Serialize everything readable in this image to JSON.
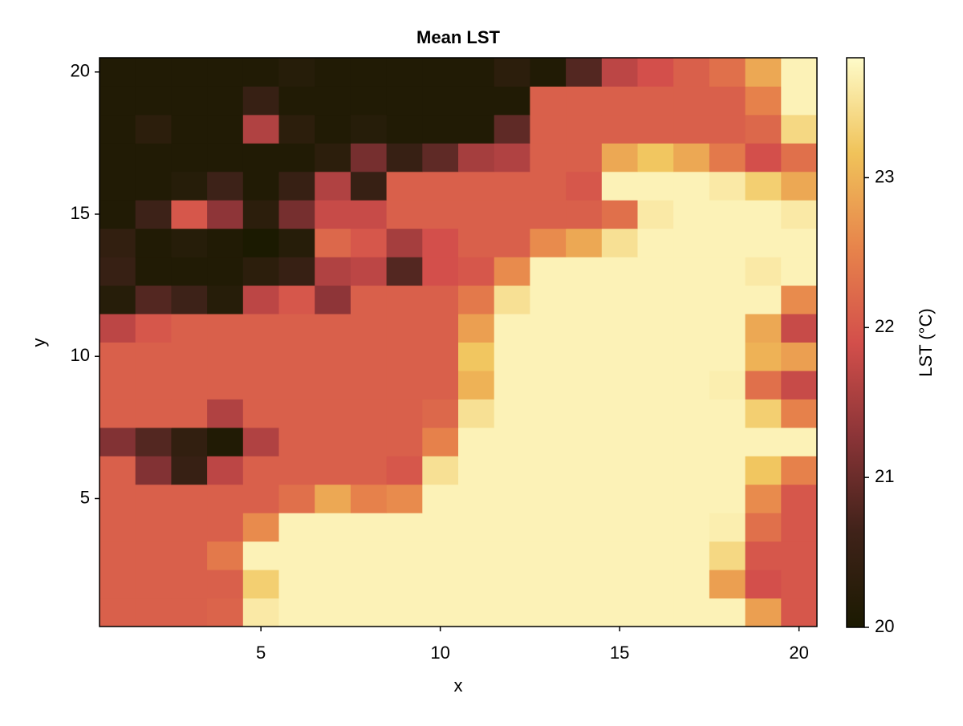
{
  "chart_data": {
    "type": "heatmap",
    "title": "Mean LST",
    "x_label": "x",
    "y_label": "y",
    "colorbar_label": "LST (°C)",
    "x": [
      1,
      2,
      3,
      4,
      5,
      6,
      7,
      8,
      9,
      10,
      11,
      12,
      13,
      14,
      15,
      16,
      17,
      18,
      19,
      20
    ],
    "y": [
      1,
      2,
      3,
      4,
      5,
      6,
      7,
      8,
      9,
      10,
      11,
      12,
      13,
      14,
      15,
      16,
      17,
      18,
      19,
      20
    ],
    "z": [
      [
        22.1,
        22.1,
        22.1,
        22.15,
        23.6,
        23.7,
        23.7,
        23.7,
        23.7,
        23.7,
        23.7,
        23.7,
        23.7,
        23.7,
        23.7,
        23.7,
        23.7,
        23.7,
        22.8,
        22.0
      ],
      [
        22.1,
        22.1,
        22.1,
        22.1,
        23.3,
        23.7,
        23.7,
        23.7,
        23.7,
        23.7,
        23.7,
        23.7,
        23.7,
        23.7,
        23.7,
        23.7,
        23.7,
        22.8,
        21.9,
        22.0
      ],
      [
        22.1,
        22.1,
        22.1,
        22.4,
        23.7,
        23.7,
        23.7,
        23.7,
        23.7,
        23.7,
        23.7,
        23.7,
        23.7,
        23.7,
        23.7,
        23.7,
        23.7,
        23.4,
        22.0,
        22.0
      ],
      [
        22.1,
        22.1,
        22.1,
        22.1,
        22.6,
        23.7,
        23.7,
        23.7,
        23.7,
        23.7,
        23.7,
        23.7,
        23.7,
        23.7,
        23.7,
        23.7,
        23.7,
        23.65,
        22.3,
        22.0
      ],
      [
        22.1,
        22.1,
        22.1,
        22.1,
        22.1,
        22.3,
        22.9,
        22.5,
        22.6,
        23.7,
        23.7,
        23.7,
        23.7,
        23.7,
        23.7,
        23.7,
        23.7,
        23.7,
        22.6,
        22.0
      ],
      [
        22.1,
        21.2,
        20.5,
        21.7,
        22.1,
        22.1,
        22.1,
        22.1,
        22.0,
        23.5,
        23.7,
        23.7,
        23.7,
        23.7,
        23.7,
        23.7,
        23.7,
        23.7,
        23.2,
        22.5
      ],
      [
        21.2,
        20.8,
        20.4,
        20.1,
        21.6,
        22.1,
        22.1,
        22.1,
        22.1,
        22.5,
        23.7,
        23.7,
        23.7,
        23.7,
        23.7,
        23.7,
        23.7,
        23.7,
        23.7,
        23.7
      ],
      [
        22.1,
        22.1,
        22.1,
        21.6,
        22.1,
        22.1,
        22.1,
        22.1,
        22.1,
        22.2,
        23.5,
        23.7,
        23.7,
        23.7,
        23.7,
        23.7,
        23.7,
        23.7,
        23.3,
        22.5
      ],
      [
        22.1,
        22.1,
        22.1,
        22.1,
        22.1,
        22.1,
        22.1,
        22.1,
        22.1,
        22.1,
        23.0,
        23.7,
        23.7,
        23.7,
        23.7,
        23.7,
        23.7,
        23.65,
        22.3,
        21.8
      ],
      [
        22.1,
        22.1,
        22.1,
        22.1,
        22.1,
        22.1,
        22.1,
        22.1,
        22.1,
        22.1,
        23.2,
        23.7,
        23.7,
        23.7,
        23.7,
        23.7,
        23.7,
        23.7,
        23.0,
        22.8
      ],
      [
        21.7,
        22.0,
        22.1,
        22.1,
        22.1,
        22.1,
        22.1,
        22.1,
        22.1,
        22.1,
        22.8,
        23.7,
        23.7,
        23.7,
        23.7,
        23.7,
        23.7,
        23.7,
        22.9,
        21.8
      ],
      [
        20.2,
        20.8,
        20.6,
        20.2,
        21.7,
        22.0,
        21.3,
        22.1,
        22.1,
        22.1,
        22.4,
        23.5,
        23.7,
        23.7,
        23.7,
        23.7,
        23.7,
        23.7,
        23.7,
        22.6
      ],
      [
        20.5,
        20.1,
        20.1,
        20.1,
        20.3,
        20.5,
        21.6,
        21.7,
        20.8,
        21.9,
        22.0,
        22.6,
        23.7,
        23.7,
        23.7,
        23.7,
        23.7,
        23.7,
        23.6,
        23.7
      ],
      [
        20.4,
        20.1,
        20.2,
        20.1,
        20.0,
        20.2,
        22.2,
        22.0,
        21.5,
        21.9,
        22.1,
        22.1,
        22.6,
        22.9,
        23.5,
        23.7,
        23.7,
        23.7,
        23.7,
        23.7
      ],
      [
        20.1,
        20.6,
        22.0,
        21.3,
        20.3,
        21.1,
        21.8,
        21.8,
        22.1,
        22.1,
        22.1,
        22.1,
        22.1,
        22.1,
        22.3,
        23.6,
        23.7,
        23.7,
        23.7,
        23.6
      ],
      [
        20.1,
        20.1,
        20.2,
        20.6,
        20.1,
        20.5,
        21.6,
        20.5,
        22.1,
        22.1,
        22.1,
        22.1,
        22.1,
        22.0,
        23.7,
        23.7,
        23.7,
        23.6,
        23.3,
        22.9
      ],
      [
        20.1,
        20.1,
        20.1,
        20.1,
        20.1,
        20.1,
        20.3,
        21.1,
        20.5,
        20.9,
        21.5,
        21.6,
        22.1,
        22.1,
        22.9,
        23.2,
        22.9,
        22.4,
        21.9,
        22.3
      ],
      [
        20.1,
        20.3,
        20.1,
        20.1,
        21.6,
        20.3,
        20.1,
        20.2,
        20.1,
        20.1,
        20.1,
        20.9,
        22.1,
        22.1,
        22.1,
        22.1,
        22.1,
        22.1,
        22.2,
        23.4
      ],
      [
        20.1,
        20.1,
        20.1,
        20.1,
        20.5,
        20.1,
        20.1,
        20.1,
        20.1,
        20.1,
        20.1,
        20.1,
        22.1,
        22.1,
        22.1,
        22.1,
        22.1,
        22.1,
        22.5,
        23.7
      ],
      [
        20.1,
        20.1,
        20.1,
        20.1,
        20.1,
        20.2,
        20.1,
        20.1,
        20.1,
        20.1,
        20.1,
        20.3,
        20.1,
        20.8,
        21.7,
        21.9,
        22.1,
        22.3,
        22.9,
        23.7
      ]
    ],
    "xlim": [
      0.5,
      20.5
    ],
    "ylim": [
      0.5,
      20.5
    ],
    "xticks": [
      5,
      10,
      15,
      20
    ],
    "yticks": [
      5,
      10,
      15,
      20
    ],
    "zlim": [
      20,
      23.8
    ],
    "colorbar_ticks": [
      20,
      21,
      22,
      23
    ],
    "colormap": [
      "#1b1a01",
      "#3f2219",
      "#8a3437",
      "#d34f4b",
      "#e7844b",
      "#f0c35a",
      "#fefbc9"
    ]
  }
}
